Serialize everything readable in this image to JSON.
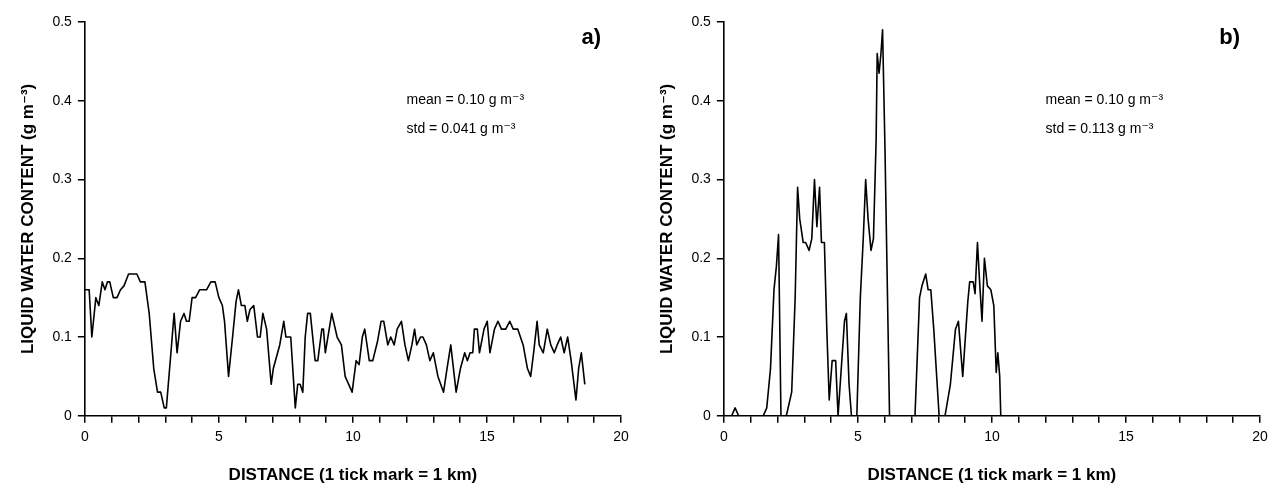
{
  "chart_data": [
    {
      "type": "line",
      "title": "a)",
      "xlabel": "DISTANCE (1 tick mark = 1 km)",
      "ylabel": "LIQUID WATER CONTENT (g m⁻³)",
      "annotations": [
        "mean = 0.10 g m⁻³",
        "std = 0.041 g m⁻³"
      ],
      "color": "#000000",
      "grid": false,
      "legend": false,
      "xlim": [
        0,
        20
      ],
      "ylim": [
        0,
        0.5
      ],
      "xticks": [
        0,
        {
          "value": 1,
          "label": null
        },
        {
          "value": 2,
          "label": null
        },
        {
          "value": 3,
          "label": null
        },
        {
          "value": 4,
          "label": null
        },
        5,
        {
          "value": 6,
          "label": null
        },
        {
          "value": 7,
          "label": null
        },
        {
          "value": 8,
          "label": null
        },
        {
          "value": 9,
          "label": null
        },
        10,
        {
          "value": 11,
          "label": null
        },
        {
          "value": 12,
          "label": null
        },
        {
          "value": 13,
          "label": null
        },
        {
          "value": 14,
          "label": null
        },
        15,
        {
          "value": 16,
          "label": null
        },
        {
          "value": 17,
          "label": null
        },
        {
          "value": 18,
          "label": null
        },
        {
          "value": 19,
          "label": null
        },
        20
      ],
      "yticks": [
        0,
        0.1,
        0.2,
        0.3,
        0.4,
        0.5
      ],
      "x": [
        0,
        0.16,
        0.26,
        0.41,
        0.52,
        0.65,
        0.75,
        0.84,
        0.93,
        1.06,
        1.2,
        1.33,
        1.46,
        1.63,
        1.94,
        2.07,
        2.24,
        2.4,
        2.57,
        2.71,
        2.83,
        2.96,
        3.04,
        3.21,
        3.33,
        3.44,
        3.57,
        3.7,
        3.79,
        3.89,
        4.0,
        4.13,
        4.28,
        4.54,
        4.7,
        4.86,
        5.0,
        5.13,
        5.21,
        5.36,
        5.51,
        5.64,
        5.73,
        5.84,
        5.97,
        6.06,
        6.16,
        6.3,
        6.44,
        6.54,
        6.64,
        6.78,
        6.95,
        7.03,
        7.27,
        7.42,
        7.5,
        7.68,
        7.85,
        7.94,
        8.03,
        8.13,
        8.22,
        8.31,
        8.41,
        8.59,
        8.69,
        8.84,
        8.9,
        8.97,
        9.21,
        9.41,
        9.57,
        9.71,
        9.97,
        10.12,
        10.23,
        10.35,
        10.44,
        10.61,
        10.74,
        10.92,
        11.05,
        11.15,
        11.3,
        11.41,
        11.54,
        11.65,
        11.81,
        11.94,
        12.07,
        12.2,
        12.3,
        12.38,
        12.52,
        12.61,
        12.74,
        12.87,
        13.0,
        13.17,
        13.38,
        13.51,
        13.65,
        13.75,
        13.85,
        14.01,
        14.17,
        14.27,
        14.37,
        14.47,
        14.53,
        14.64,
        14.72,
        14.89,
        15.01,
        15.11,
        15.28,
        15.41,
        15.54,
        15.7,
        15.85,
        15.98,
        16.15,
        16.35,
        16.51,
        16.63,
        16.74,
        16.87,
        16.95,
        17.1,
        17.25,
        17.38,
        17.51,
        17.62,
        17.75,
        17.88,
        18.01,
        18.14,
        18.32,
        18.42,
        18.52,
        18.65
      ],
      "values": [
        0.16,
        0.16,
        0.1,
        0.15,
        0.14,
        0.17,
        0.16,
        0.17,
        0.17,
        0.15,
        0.15,
        0.16,
        0.165,
        0.18,
        0.18,
        0.17,
        0.17,
        0.13,
        0.06,
        0.03,
        0.03,
        0.01,
        0.01,
        0.08,
        0.13,
        0.08,
        0.12,
        0.13,
        0.12,
        0.12,
        0.15,
        0.15,
        0.16,
        0.16,
        0.17,
        0.17,
        0.15,
        0.14,
        0.12,
        0.05,
        0.1,
        0.145,
        0.16,
        0.14,
        0.14,
        0.12,
        0.135,
        0.14,
        0.1,
        0.1,
        0.13,
        0.11,
        0.04,
        0.06,
        0.09,
        0.12,
        0.1,
        0.1,
        0.01,
        0.04,
        0.04,
        0.03,
        0.1,
        0.13,
        0.13,
        0.07,
        0.07,
        0.11,
        0.11,
        0.08,
        0.13,
        0.1,
        0.09,
        0.05,
        0.03,
        0.07,
        0.065,
        0.1,
        0.11,
        0.07,
        0.07,
        0.095,
        0.12,
        0.12,
        0.09,
        0.1,
        0.09,
        0.11,
        0.12,
        0.09,
        0.07,
        0.09,
        0.11,
        0.09,
        0.1,
        0.1,
        0.09,
        0.07,
        0.08,
        0.05,
        0.03,
        0.06,
        0.09,
        0.06,
        0.03,
        0.06,
        0.08,
        0.07,
        0.08,
        0.08,
        0.11,
        0.11,
        0.08,
        0.11,
        0.12,
        0.08,
        0.11,
        0.12,
        0.11,
        0.11,
        0.12,
        0.11,
        0.11,
        0.09,
        0.06,
        0.05,
        0.08,
        0.12,
        0.09,
        0.08,
        0.11,
        0.09,
        0.08,
        0.09,
        0.1,
        0.08,
        0.1,
        0.07,
        0.02,
        0.06,
        0.08,
        0.04
      ]
    },
    {
      "type": "line",
      "title": "b)",
      "xlabel": "DISTANCE (1 tick mark = 1 km)",
      "ylabel": "LIQUID WATER CONTENT (g m⁻³)",
      "annotations": [
        "mean = 0.10 g m⁻³",
        "std = 0.113 g m⁻³"
      ],
      "color": "#000000",
      "grid": false,
      "legend": false,
      "xlim": [
        0,
        20
      ],
      "ylim": [
        0,
        0.5
      ],
      "xticks": [
        0,
        {
          "value": 1,
          "label": null
        },
        {
          "value": 2,
          "label": null
        },
        {
          "value": 3,
          "label": null
        },
        {
          "value": 4,
          "label": null
        },
        5,
        {
          "value": 6,
          "label": null
        },
        {
          "value": 7,
          "label": null
        },
        {
          "value": 8,
          "label": null
        },
        {
          "value": 9,
          "label": null
        },
        10,
        {
          "value": 11,
          "label": null
        },
        {
          "value": 12,
          "label": null
        },
        {
          "value": 13,
          "label": null
        },
        {
          "value": 14,
          "label": null
        },
        15,
        {
          "value": 16,
          "label": null
        },
        {
          "value": 17,
          "label": null
        },
        {
          "value": 18,
          "label": null
        },
        {
          "value": 19,
          "label": null
        },
        20
      ],
      "yticks": [
        0,
        0.1,
        0.2,
        0.3,
        0.4,
        0.5
      ],
      "x": [
        0,
        0.29,
        0.42,
        0.55,
        1.47,
        1.6,
        1.74,
        1.87,
        1.96,
        2.04,
        2.13,
        2.33,
        2.53,
        2.66,
        2.75,
        2.83,
        2.96,
        3.05,
        3.18,
        3.28,
        3.38,
        3.47,
        3.57,
        3.64,
        3.75,
        3.84,
        3.93,
        4.04,
        4.17,
        4.26,
        4.38,
        4.5,
        4.57,
        4.67,
        4.76,
        4.96,
        5.09,
        5.2,
        5.29,
        5.38,
        5.49,
        5.58,
        5.68,
        5.72,
        5.79,
        5.86,
        5.92,
        6.01,
        6.18,
        7.13,
        7.3,
        7.39,
        7.53,
        7.62,
        7.72,
        7.83,
        8.03,
        8.25,
        8.45,
        8.64,
        8.75,
        8.91,
        9.1,
        9.17,
        9.3,
        9.37,
        9.46,
        9.54,
        9.63,
        9.72,
        9.83,
        9.96,
        10.07,
        10.16,
        10.22,
        10.29,
        10.33,
        20
      ],
      "values": [
        0,
        0,
        0.01,
        0,
        0,
        0.01,
        0.06,
        0.16,
        0.19,
        0.23,
        0,
        0,
        0.03,
        0.15,
        0.29,
        0.25,
        0.22,
        0.22,
        0.21,
        0.225,
        0.3,
        0.24,
        0.29,
        0.22,
        0.22,
        0.11,
        0.02,
        0.07,
        0.07,
        0,
        0.06,
        0.12,
        0.13,
        0.04,
        0,
        0,
        0.15,
        0.225,
        0.3,
        0.25,
        0.21,
        0.225,
        0.35,
        0.46,
        0.435,
        0.46,
        0.49,
        0.34,
        0,
        0,
        0.15,
        0.165,
        0.18,
        0.16,
        0.16,
        0.11,
        0,
        0,
        0.04,
        0.11,
        0.12,
        0.05,
        0.145,
        0.17,
        0.17,
        0.155,
        0.22,
        0.17,
        0.12,
        0.2,
        0.165,
        0.16,
        0.14,
        0.055,
        0.08,
        0.05,
        0,
        0
      ]
    }
  ]
}
